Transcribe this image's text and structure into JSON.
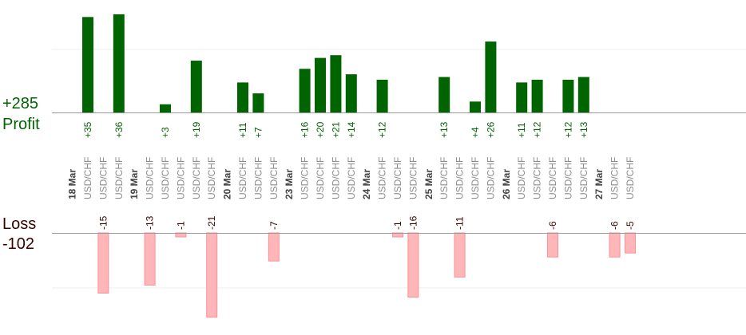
{
  "summary": {
    "profit_total": "+285",
    "profit_label": "Profit",
    "loss_label": "Loss",
    "loss_total": "-102"
  },
  "colors": {
    "profit_bar": "#006400",
    "profit_text": "#006400",
    "loss_bar": "#ffb6b8",
    "loss_bar_edge": "#ff9096",
    "loss_text": "#3a0000",
    "date_text": "#444444",
    "pair_text": "#8c8c8c",
    "axis": "#999999",
    "grid": "#eeeeee"
  },
  "chart_data": {
    "type": "bar",
    "layout": "diverging profit/loss by trade",
    "title": "",
    "profit_ylim": [
      0,
      40
    ],
    "loss_ylim": [
      0,
      24
    ],
    "profit_gridlines": [
      10
    ],
    "loss_gridlines": [
      9
    ],
    "dates": [
      "18 Mar",
      "19 Mar",
      "20 Mar",
      "23 Mar",
      "24 Mar",
      "25 Mar",
      "26 Mar",
      "27 Mar"
    ],
    "trades": [
      {
        "date": "18 Mar",
        "pair": "USD/CHF",
        "value": 35,
        "label": "+35"
      },
      {
        "date": "18 Mar",
        "pair": "USD/CHF",
        "value": -15,
        "label": "-15"
      },
      {
        "date": "18 Mar",
        "pair": "USD/CHF",
        "value": 36,
        "label": "+36"
      },
      {
        "date": "19 Mar",
        "pair": "USD/CHF",
        "value": -13,
        "label": "-13"
      },
      {
        "date": "19 Mar",
        "pair": "USD/CHF",
        "value": 3,
        "label": "+3"
      },
      {
        "date": "19 Mar",
        "pair": "USD/CHF",
        "value": -1,
        "label": "-1"
      },
      {
        "date": "19 Mar",
        "pair": "USD/CHF",
        "value": 19,
        "label": "+19"
      },
      {
        "date": "19 Mar",
        "pair": "USD/CHF",
        "value": -21,
        "label": "-21"
      },
      {
        "date": "20 Mar",
        "pair": "USD/CHF",
        "value": 11,
        "label": "+11"
      },
      {
        "date": "20 Mar",
        "pair": "USD/CHF",
        "value": 7,
        "label": "+7"
      },
      {
        "date": "20 Mar",
        "pair": "USD/CHF",
        "value": -7,
        "label": "-7"
      },
      {
        "date": "23 Mar",
        "pair": "USD/CHF",
        "value": 16,
        "label": "+16"
      },
      {
        "date": "23 Mar",
        "pair": "USD/CHF",
        "value": 20,
        "label": "+20"
      },
      {
        "date": "23 Mar",
        "pair": "USD/CHF",
        "value": 21,
        "label": "+21"
      },
      {
        "date": "23 Mar",
        "pair": "USD/CHF",
        "value": 14,
        "label": "+14"
      },
      {
        "date": "24 Mar",
        "pair": "USD/CHF",
        "value": 12,
        "label": "+12"
      },
      {
        "date": "24 Mar",
        "pair": "USD/CHF",
        "value": -1,
        "label": "-1"
      },
      {
        "date": "24 Mar",
        "pair": "USD/CHF",
        "value": -16,
        "label": "-16"
      },
      {
        "date": "25 Mar",
        "pair": "USD/CHF",
        "value": 13,
        "label": "+13"
      },
      {
        "date": "25 Mar",
        "pair": "USD/CHF",
        "value": -11,
        "label": "-11"
      },
      {
        "date": "25 Mar",
        "pair": "USD/CHF",
        "value": 4,
        "label": "+4"
      },
      {
        "date": "25 Mar",
        "pair": "USD/CHF",
        "value": 26,
        "label": "+26"
      },
      {
        "date": "26 Mar",
        "pair": "USD/CHF",
        "value": 11,
        "label": "+11"
      },
      {
        "date": "26 Mar",
        "pair": "USD/CHF",
        "value": 12,
        "label": "+12"
      },
      {
        "date": "26 Mar",
        "pair": "USD/CHF",
        "value": -6,
        "label": "-6"
      },
      {
        "date": "26 Mar",
        "pair": "USD/CHF",
        "value": 12,
        "label": "+12"
      },
      {
        "date": "26 Mar",
        "pair": "USD/CHF",
        "value": 13,
        "label": "+13"
      },
      {
        "date": "27 Mar",
        "pair": "USD/CHF",
        "value": -6,
        "label": "-6"
      },
      {
        "date": "27 Mar",
        "pair": "USD/CHF",
        "value": -5,
        "label": "-5"
      }
    ]
  }
}
